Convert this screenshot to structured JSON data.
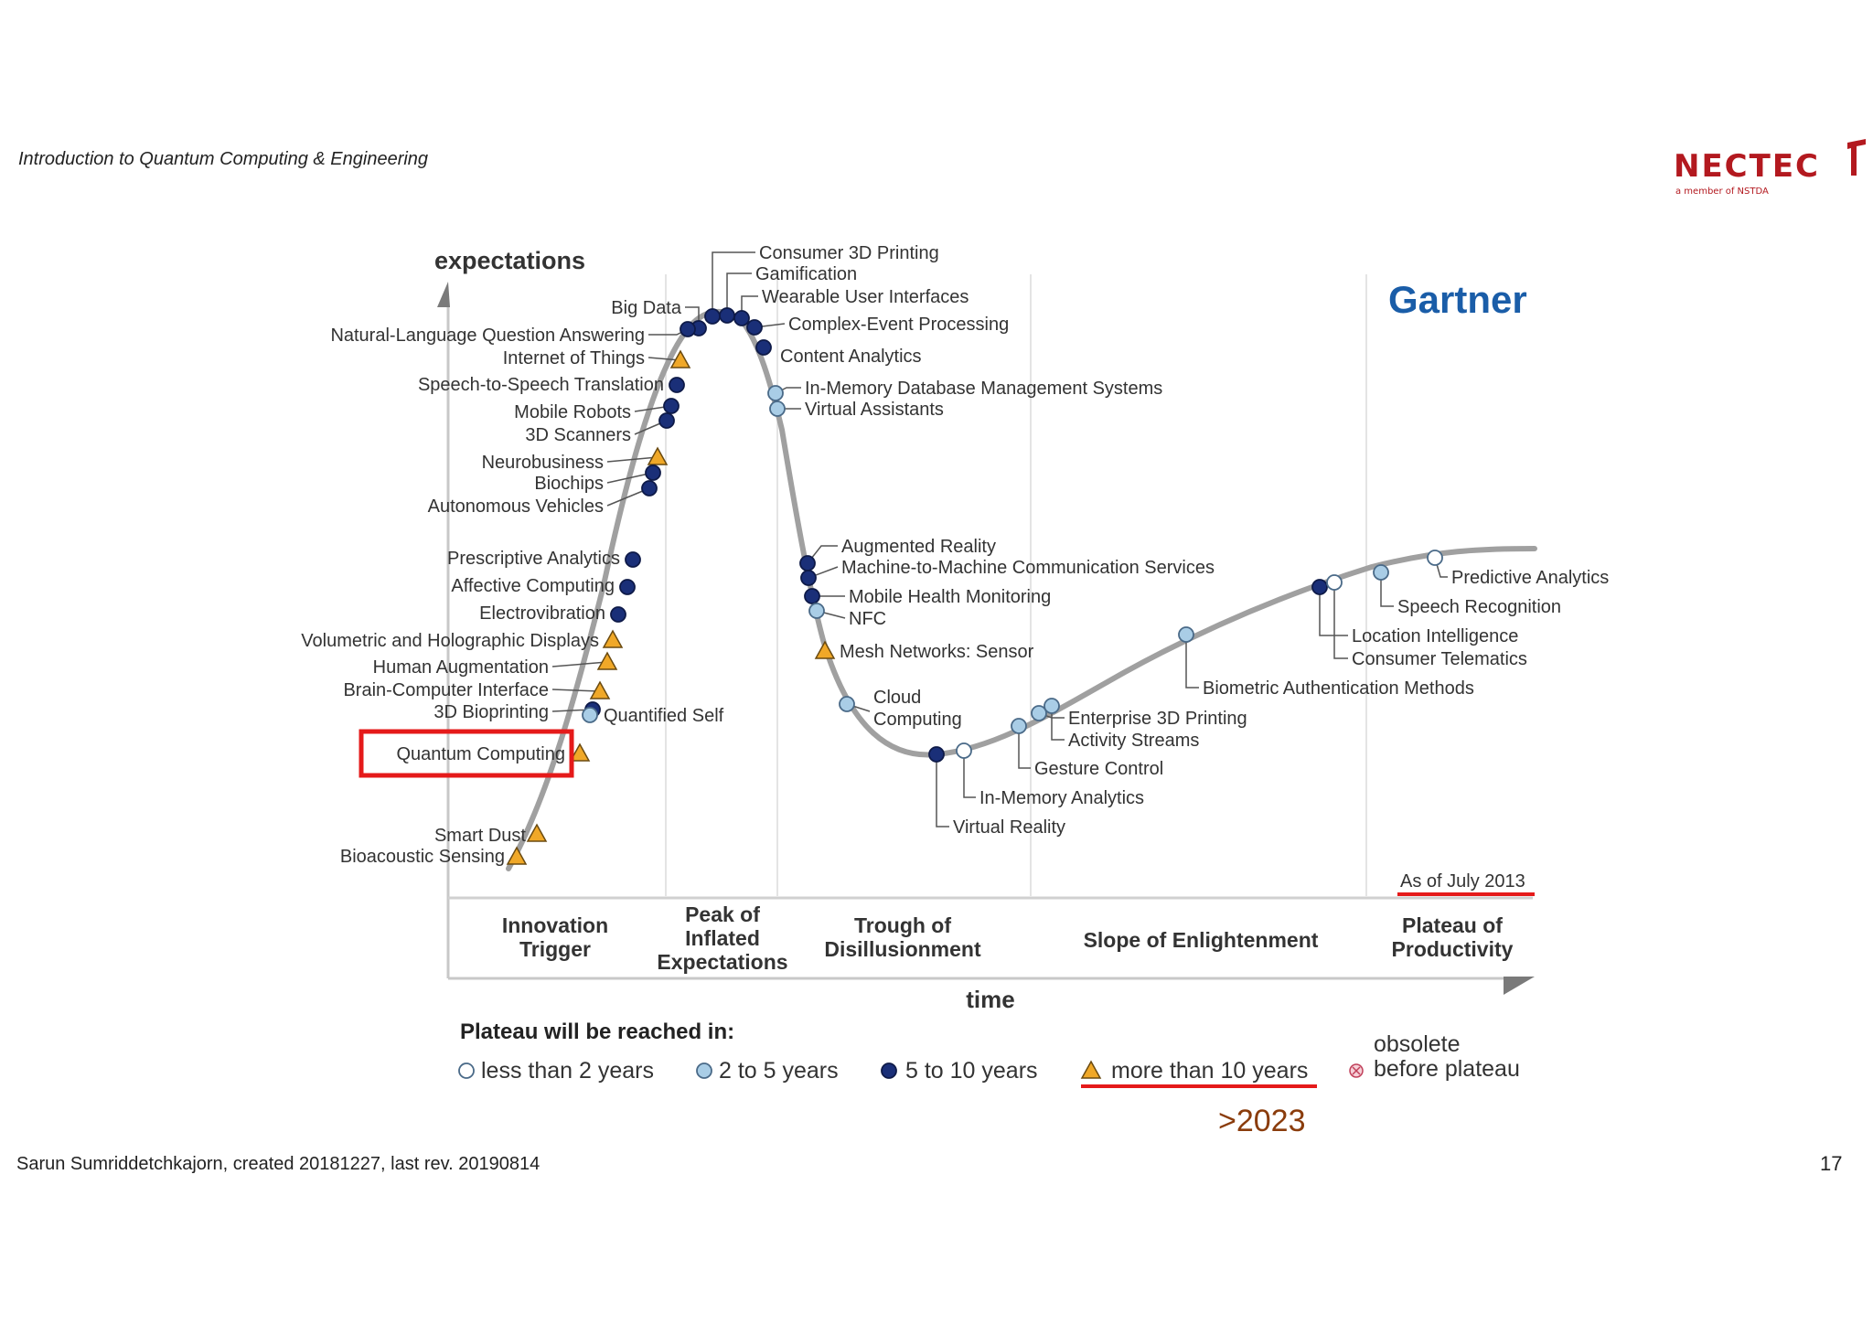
{
  "slide": {
    "course_title": "Introduction to Quantum Computing & Engineering",
    "logo_text": "NECTEC",
    "logo_sub": "a member of NSTDA",
    "footer": "Sarun Sumriddetchkajorn, created 20181227, last rev. 20190814",
    "page_number": "17"
  },
  "hype_cycle": {
    "y_axis_label": "expectations",
    "x_axis_label": "time",
    "brand": "Gartner",
    "as_of": "As of July 2013",
    "phases": [
      {
        "lines": [
          "Innovation",
          "Trigger"
        ]
      },
      {
        "lines": [
          "Peak of",
          "Inflated",
          "Expectations"
        ]
      },
      {
        "lines": [
          "Trough of",
          "Disillusionment"
        ]
      },
      {
        "lines": [
          "Slope of Enlightenment"
        ]
      },
      {
        "lines": [
          "Plateau of",
          "Productivity"
        ]
      }
    ],
    "legend": {
      "title": "Plateau will be reached in:",
      "items": [
        {
          "marker": "white-circle",
          "label": "less than 2 years"
        },
        {
          "marker": "light-blue-circle",
          "label": "2 to 5 years"
        },
        {
          "marker": "dark-blue-circle",
          "label": "5 to 10 years"
        },
        {
          "marker": "orange-triangle",
          "label": "more than 10 years"
        },
        {
          "marker": "pink-x-circle",
          "label_lines": [
            "obsolete",
            "before plateau"
          ]
        }
      ]
    },
    "annotation": ">2023",
    "highlighted_technology": "Quantum Computing",
    "technologies": [
      {
        "name": "Consumer 3D Printing",
        "marker": "dark-blue-circle"
      },
      {
        "name": "Gamification",
        "marker": "dark-blue-circle"
      },
      {
        "name": "Wearable User Interfaces",
        "marker": "dark-blue-circle"
      },
      {
        "name": "Complex-Event Processing",
        "marker": "dark-blue-circle"
      },
      {
        "name": "Content Analytics",
        "marker": "dark-blue-circle"
      },
      {
        "name": "In-Memory Database Management Systems",
        "marker": "light-blue-circle"
      },
      {
        "name": "Virtual Assistants",
        "marker": "light-blue-circle"
      },
      {
        "name": "Big Data",
        "marker": "dark-blue-circle"
      },
      {
        "name": "Natural-Language Question Answering",
        "marker": "dark-blue-circle"
      },
      {
        "name": "Internet of Things",
        "marker": "orange-triangle"
      },
      {
        "name": "Speech-to-Speech Translation",
        "marker": "dark-blue-circle"
      },
      {
        "name": "Mobile Robots",
        "marker": "dark-blue-circle"
      },
      {
        "name": "3D Scanners",
        "marker": "dark-blue-circle"
      },
      {
        "name": "Neurobusiness",
        "marker": "orange-triangle"
      },
      {
        "name": "Biochips",
        "marker": "dark-blue-circle"
      },
      {
        "name": "Autonomous Vehicles",
        "marker": "dark-blue-circle"
      },
      {
        "name": "Prescriptive Analytics",
        "marker": "dark-blue-circle"
      },
      {
        "name": "Affective Computing",
        "marker": "dark-blue-circle"
      },
      {
        "name": "Electrovibration",
        "marker": "dark-blue-circle"
      },
      {
        "name": "Volumetric and Holographic Displays",
        "marker": "orange-triangle"
      },
      {
        "name": "Human Augmentation",
        "marker": "orange-triangle"
      },
      {
        "name": "Brain-Computer Interface",
        "marker": "orange-triangle"
      },
      {
        "name": "3D Bioprinting",
        "marker": "dark-blue-circle"
      },
      {
        "name": "Quantified Self",
        "marker": "light-blue-circle"
      },
      {
        "name": "Quantum Computing",
        "marker": "orange-triangle"
      },
      {
        "name": "Smart Dust",
        "marker": "orange-triangle"
      },
      {
        "name": "Bioacoustic Sensing",
        "marker": "orange-triangle"
      },
      {
        "name": "Augmented Reality",
        "marker": "dark-blue-circle"
      },
      {
        "name": "Machine-to-Machine Communication Services",
        "marker": "dark-blue-circle"
      },
      {
        "name": "Mobile Health Monitoring",
        "marker": "dark-blue-circle"
      },
      {
        "name": "NFC",
        "marker": "light-blue-circle"
      },
      {
        "name": "Mesh Networks: Sensor",
        "marker": "orange-triangle"
      },
      {
        "name_lines": [
          "Cloud",
          "Computing"
        ],
        "marker": "light-blue-circle"
      },
      {
        "name": "Virtual Reality",
        "marker": "dark-blue-circle"
      },
      {
        "name": "In-Memory Analytics",
        "marker": "white-circle"
      },
      {
        "name": "Gesture Control",
        "marker": "light-blue-circle"
      },
      {
        "name": "Enterprise 3D Printing",
        "marker": "light-blue-circle"
      },
      {
        "name": "Activity Streams",
        "marker": "light-blue-circle"
      },
      {
        "name": "Biometric Authentication Methods",
        "marker": "light-blue-circle"
      },
      {
        "name": "Location Intelligence",
        "marker": "dark-blue-circle"
      },
      {
        "name": "Consumer Telematics",
        "marker": "white-circle"
      },
      {
        "name": "Speech Recognition",
        "marker": "light-blue-circle"
      },
      {
        "name": "Predictive Analytics",
        "marker": "white-circle"
      }
    ],
    "colors": {
      "dark_blue": "#1a2f78",
      "light_blue": "#a9cde6",
      "orange": "#f0a828",
      "highlight_red": "#e51a1a",
      "annotation_brown": "#8a3c0c",
      "gartner_blue": "#1a5da8",
      "curve_gray": "#9a9a9a"
    }
  }
}
